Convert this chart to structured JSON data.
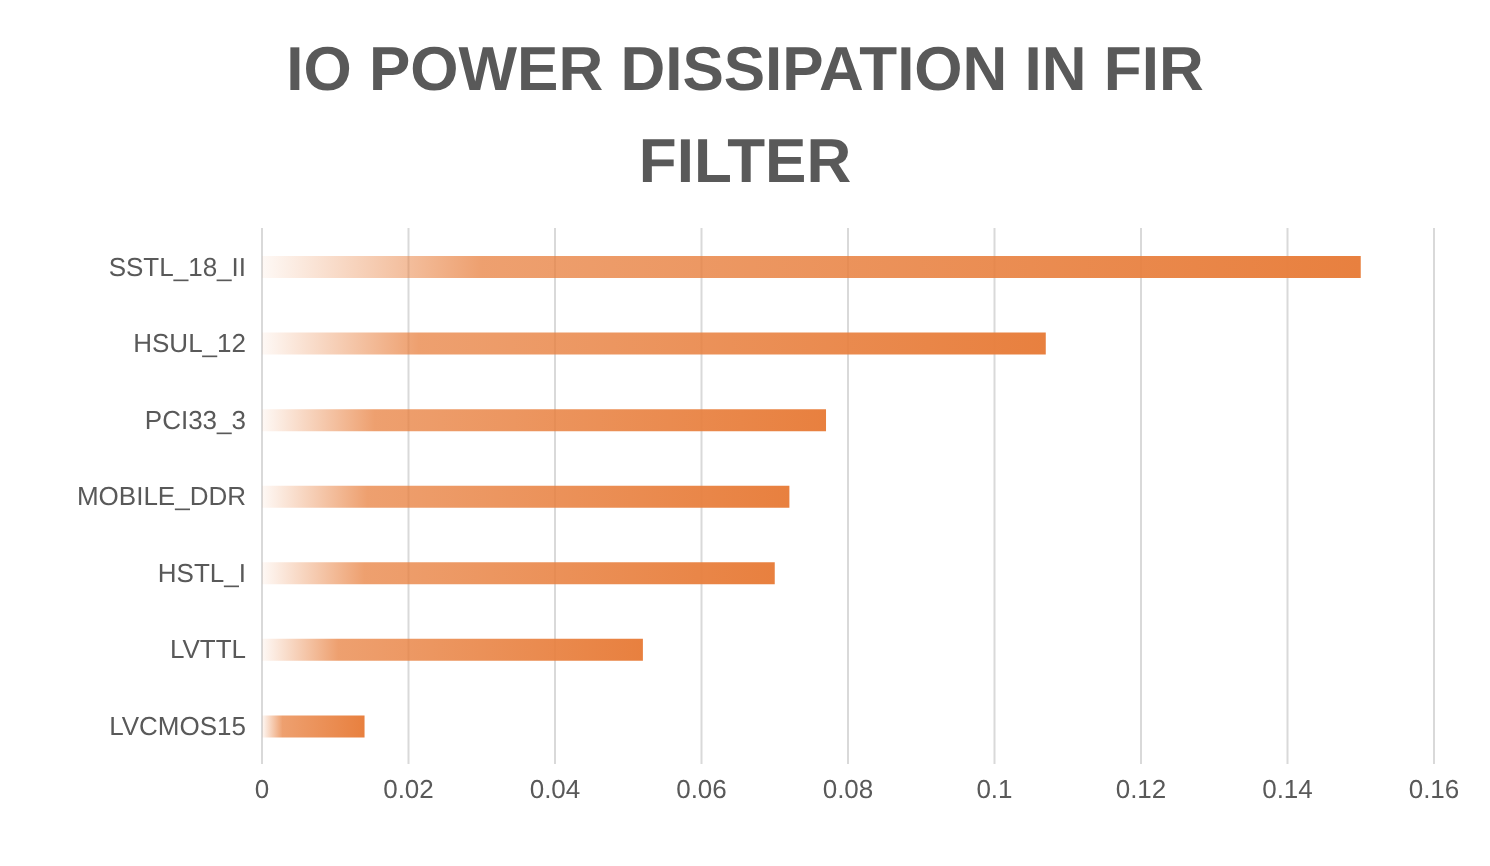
{
  "chart_data": {
    "type": "bar",
    "orientation": "horizontal",
    "title": "IO POWER DISSIPATION IN FIR FILTER",
    "categories": [
      "SSTL_18_II",
      "HSUL_12",
      "PCI33_3",
      "MOBILE_DDR",
      "HSTL_I",
      "LVTTL",
      "LVCMOS15"
    ],
    "values": [
      0.15,
      0.107,
      0.077,
      0.072,
      0.07,
      0.052,
      0.014
    ],
    "color": "#e8803f",
    "xlim": [
      0,
      0.16
    ],
    "xticks": [
      0,
      0.02,
      0.04,
      0.06,
      0.08,
      0.1,
      0.12,
      0.14,
      0.16
    ],
    "grid": "x"
  }
}
